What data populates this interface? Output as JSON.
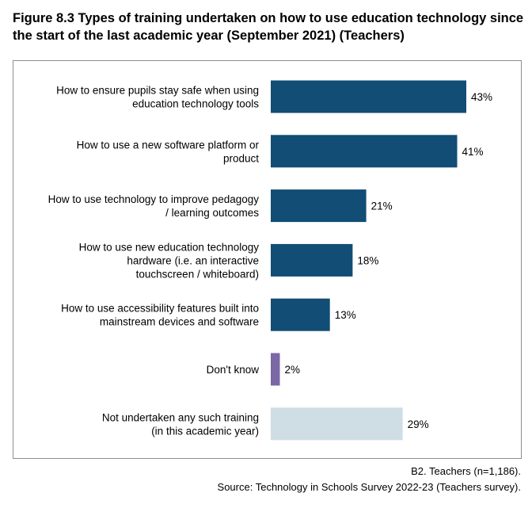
{
  "chart_data": {
    "type": "bar",
    "orientation": "horizontal",
    "title": "Figure 8.3 Types of training undertaken on how to use education technology since the start of the last academic year (September 2021) (Teachers)",
    "categories": [
      [
        "How to ensure pupils stay safe when using",
        "education technology tools"
      ],
      [
        "How to use a new software platform or",
        "product"
      ],
      [
        "How to use technology to improve pedagogy",
        "/ learning outcomes"
      ],
      [
        "How to use new education technology",
        "hardware (i.e. an interactive",
        "touchscreen / whiteboard)"
      ],
      [
        "How to use accessibility features built into",
        "mainstream devices and software"
      ],
      [
        "Don't know"
      ],
      [
        "Not undertaken any such training",
        "(in this academic year)"
      ]
    ],
    "values": [
      43,
      41,
      21,
      18,
      13,
      2,
      29
    ],
    "value_labels": [
      "43%",
      "41%",
      "21%",
      "18%",
      "13%",
      "2%",
      "29%"
    ],
    "colors": [
      "#114d75",
      "#114d75",
      "#114d75",
      "#114d75",
      "#114d75",
      "#7b68a6",
      "#cfdde5"
    ],
    "xlim": [
      0,
      43
    ],
    "grid": false,
    "legend": "none",
    "xlabel": "",
    "ylabel": ""
  },
  "footnotes": {
    "base": "B2. Teachers (n=1,186).",
    "source": "Source: Technology in Schools Survey 2022-23 (Teachers survey)."
  }
}
